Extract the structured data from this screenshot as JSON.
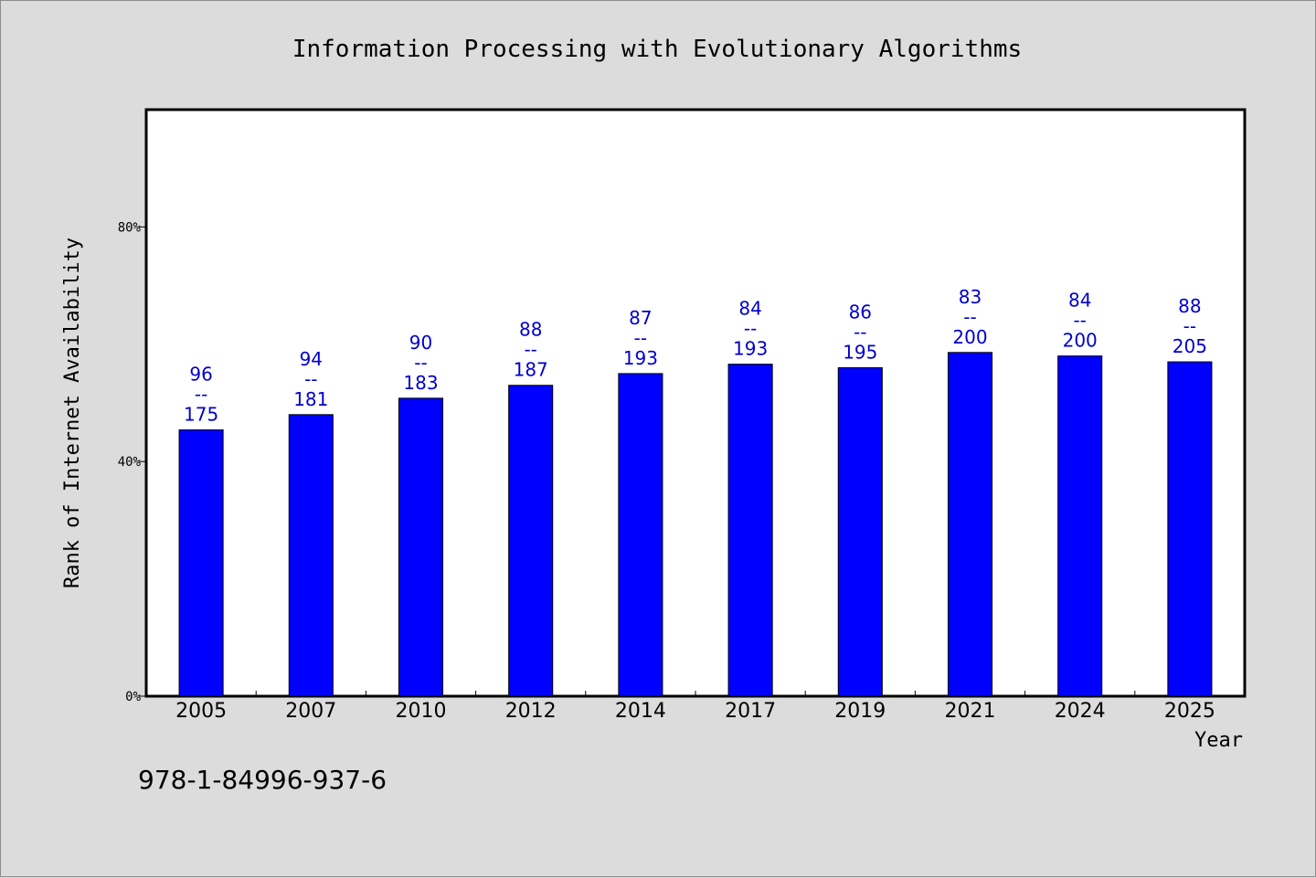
{
  "chart_data": {
    "type": "bar",
    "title": "Information Processing with Evolutionary Algorithms",
    "xlabel": "Year",
    "ylabel": "Rank of Internet Availability",
    "categories": [
      "2005",
      "2007",
      "2010",
      "2012",
      "2014",
      "2017",
      "2019",
      "2021",
      "2024",
      "2025"
    ],
    "series": [
      {
        "values": [
          45.4,
          48.0,
          50.8,
          53.0,
          55.0,
          56.6,
          56.0,
          58.6,
          58.0,
          57.0
        ],
        "labels": [
          [
            "96",
            "--",
            "175"
          ],
          [
            "94",
            "--",
            "181"
          ],
          [
            "90",
            "--",
            "183"
          ],
          [
            "88",
            "--",
            "187"
          ],
          [
            "87",
            "--",
            "193"
          ],
          [
            "84",
            "--",
            "193"
          ],
          [
            "86",
            "--",
            "195"
          ],
          [
            "83",
            "--",
            "200"
          ],
          [
            "84",
            "--",
            "200"
          ],
          [
            "88",
            "--",
            "205"
          ]
        ]
      }
    ],
    "ylim": [
      0,
      100
    ],
    "yticks": [
      0,
      40,
      80
    ],
    "ytick_labels": [
      "0%",
      "40%",
      "80%"
    ],
    "grid": false,
    "bar_color": "#0000ff",
    "label_color": "#0000cc",
    "plot_background": "#ffffff",
    "figure_background": "#dcdcdc"
  },
  "footer": {
    "isbn": "978-1-84996-937-6"
  }
}
